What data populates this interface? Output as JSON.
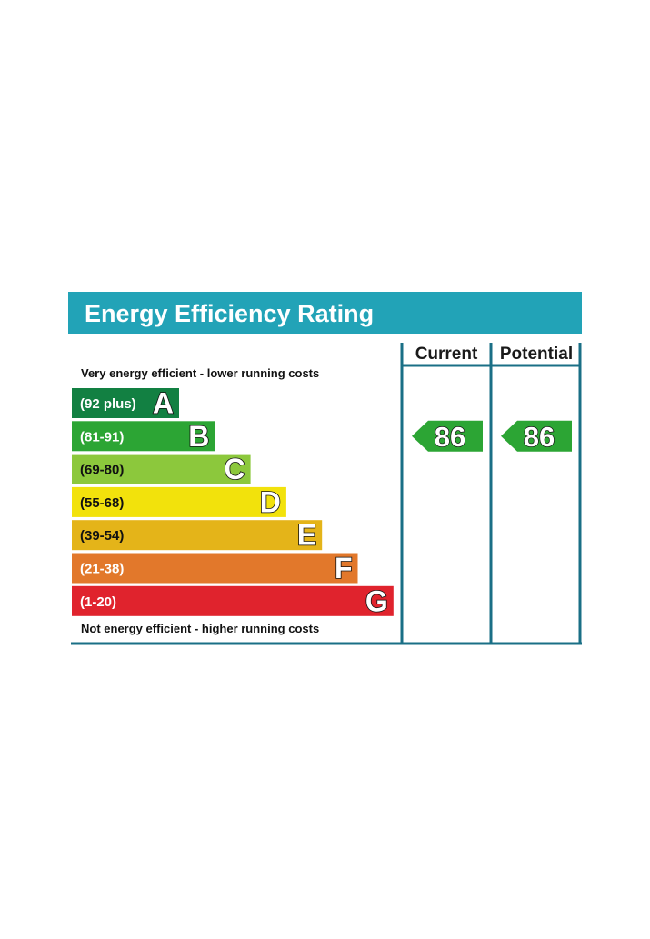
{
  "chart_data": {
    "type": "bar",
    "title": "Energy Efficiency Rating",
    "columns": [
      "Current",
      "Potential"
    ],
    "top_caption": "Very energy efficient - lower running costs",
    "bottom_caption": "Not energy efficient - higher running costs",
    "bands": [
      {
        "letter": "A",
        "range": "(92 plus)",
        "color": "#128042"
      },
      {
        "letter": "B",
        "range": "(81-91)",
        "color": "#2ca534"
      },
      {
        "letter": "C",
        "range": "(69-80)",
        "color": "#8cc83c"
      },
      {
        "letter": "D",
        "range": "(55-68)",
        "color": "#f2e20c"
      },
      {
        "letter": "E",
        "range": "(39-54)",
        "color": "#e4b419"
      },
      {
        "letter": "F",
        "range": "(21-38)",
        "color": "#e2782b"
      },
      {
        "letter": "G",
        "range": "(1-20)",
        "color": "#e0232d"
      }
    ],
    "current": {
      "value": 86,
      "band": "B"
    },
    "potential": {
      "value": 86,
      "band": "B"
    }
  },
  "colors": {
    "header": "#22a3b7",
    "frame": "#1a6f86",
    "arrow": "#2ca534"
  }
}
